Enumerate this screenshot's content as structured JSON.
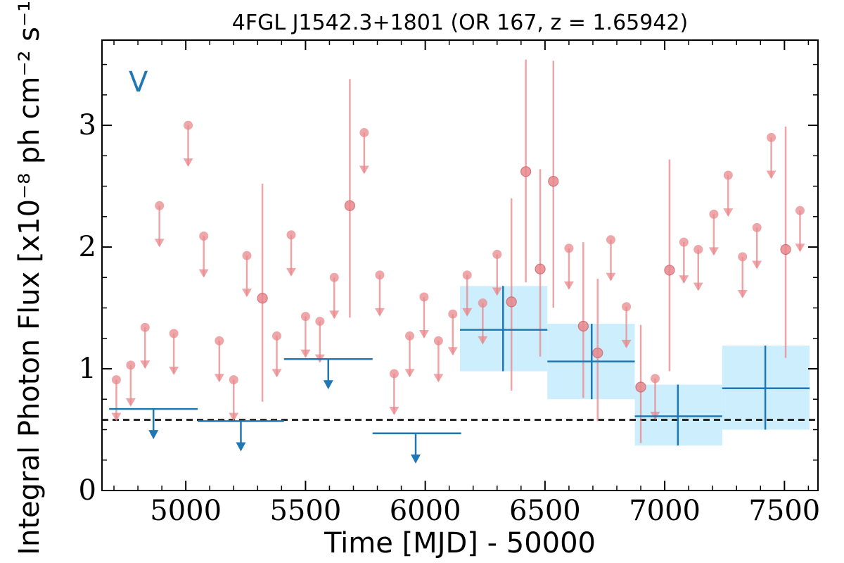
{
  "chart_data": {
    "type": "scatter",
    "title": "4FGL J1542.3+1801 (OR 167, z = 1.65942)",
    "xlabel": "Time [MJD] - 50000",
    "ylabel": "Integral Photon Flux [x10⁻⁸ ph cm⁻² s⁻¹]",
    "band_label": "V",
    "xlim": [
      4650,
      7640
    ],
    "ylim": [
      0,
      3.7
    ],
    "x_ticks": [
      5000,
      5500,
      6000,
      6500,
      7000,
      7500
    ],
    "x_tick_labels": [
      "5000",
      "5500",
      "6000",
      "6500",
      "7000",
      "7500"
    ],
    "y_ticks": [
      0,
      1,
      2,
      3
    ],
    "y_tick_labels": [
      "0",
      "1",
      "2",
      "3"
    ],
    "reference_level": 0.58,
    "colors": {
      "short_bins": "#e8888c",
      "long_bins": "#1f77b4",
      "long_bins_band": "#cdeefc",
      "reference_line": "#000000"
    },
    "short_bins_upper_limits": [
      {
        "x": 4710,
        "y": 0.91
      },
      {
        "x": 4770,
        "y": 1.03
      },
      {
        "x": 4830,
        "y": 1.34
      },
      {
        "x": 4890,
        "y": 2.34
      },
      {
        "x": 4950,
        "y": 1.29
      },
      {
        "x": 5010,
        "y": 3.0
      },
      {
        "x": 5075,
        "y": 2.09
      },
      {
        "x": 5140,
        "y": 1.23
      },
      {
        "x": 5200,
        "y": 0.91
      },
      {
        "x": 5255,
        "y": 1.93
      },
      {
        "x": 5380,
        "y": 1.27
      },
      {
        "x": 5440,
        "y": 2.1
      },
      {
        "x": 5500,
        "y": 1.43
      },
      {
        "x": 5560,
        "y": 1.39
      },
      {
        "x": 5620,
        "y": 1.75
      },
      {
        "x": 5745,
        "y": 2.94
      },
      {
        "x": 5810,
        "y": 1.77
      },
      {
        "x": 5870,
        "y": 0.96
      },
      {
        "x": 5935,
        "y": 1.27
      },
      {
        "x": 5995,
        "y": 1.59
      },
      {
        "x": 6055,
        "y": 1.23
      },
      {
        "x": 6115,
        "y": 1.45
      },
      {
        "x": 6175,
        "y": 1.77
      },
      {
        "x": 6240,
        "y": 1.54
      },
      {
        "x": 6300,
        "y": 1.94
      },
      {
        "x": 6600,
        "y": 1.99
      },
      {
        "x": 6775,
        "y": 2.06
      },
      {
        "x": 6840,
        "y": 1.51
      },
      {
        "x": 6960,
        "y": 0.92
      },
      {
        "x": 7080,
        "y": 2.04
      },
      {
        "x": 7140,
        "y": 1.98
      },
      {
        "x": 7205,
        "y": 2.27
      },
      {
        "x": 7265,
        "y": 2.59
      },
      {
        "x": 7325,
        "y": 1.92
      },
      {
        "x": 7385,
        "y": 2.16
      },
      {
        "x": 7445,
        "y": 2.9
      },
      {
        "x": 7565,
        "y": 2.3
      }
    ],
    "short_bins_detections": [
      {
        "x": 5320,
        "y": 1.58,
        "y_low": 0.73,
        "y_high": 2.52
      },
      {
        "x": 5685,
        "y": 2.34,
        "y_low": 1.42,
        "y_high": 3.38
      },
      {
        "x": 6360,
        "y": 1.55,
        "y_low": 0.82,
        "y_high": 2.4
      },
      {
        "x": 6420,
        "y": 2.62,
        "y_low": 1.71,
        "y_high": 3.54
      },
      {
        "x": 6480,
        "y": 1.82,
        "y_low": 1.1,
        "y_high": 2.64
      },
      {
        "x": 6535,
        "y": 2.54,
        "y_low": 1.5,
        "y_high": 3.53
      },
      {
        "x": 6660,
        "y": 1.35,
        "y_low": 0.76,
        "y_high": 2.04
      },
      {
        "x": 6720,
        "y": 1.13,
        "y_low": 0.57,
        "y_high": 1.74
      },
      {
        "x": 6900,
        "y": 0.85,
        "y_low": 0.39,
        "y_high": 1.36
      },
      {
        "x": 7020,
        "y": 1.81,
        "y_low": 0.98,
        "y_high": 2.72
      },
      {
        "x": 7505,
        "y": 1.98,
        "y_low": 1.09,
        "y_high": 2.99
      }
    ],
    "long_bins_upper_limits": [
      {
        "x_start": 4680,
        "x_end": 5050,
        "x": 4865,
        "y": 0.67
      },
      {
        "x_start": 5050,
        "x_end": 5410,
        "x": 5230,
        "y": 0.57
      },
      {
        "x_start": 5410,
        "x_end": 5780,
        "x": 5595,
        "y": 1.08
      },
      {
        "x_start": 5780,
        "x_end": 6150,
        "x": 5960,
        "y": 0.47
      }
    ],
    "long_bins_detections": [
      {
        "x_start": 6145,
        "x_end": 6510,
        "x": 6325,
        "y": 1.32,
        "y_low": 0.98,
        "y_high": 1.68
      },
      {
        "x_start": 6510,
        "x_end": 6875,
        "x": 6695,
        "y": 1.06,
        "y_low": 0.75,
        "y_high": 1.37
      },
      {
        "x_start": 6875,
        "x_end": 7240,
        "x": 7055,
        "y": 0.61,
        "y_low": 0.37,
        "y_high": 0.87
      },
      {
        "x_start": 7240,
        "x_end": 7605,
        "x": 7420,
        "y": 0.84,
        "y_low": 0.5,
        "y_high": 1.19
      }
    ]
  }
}
